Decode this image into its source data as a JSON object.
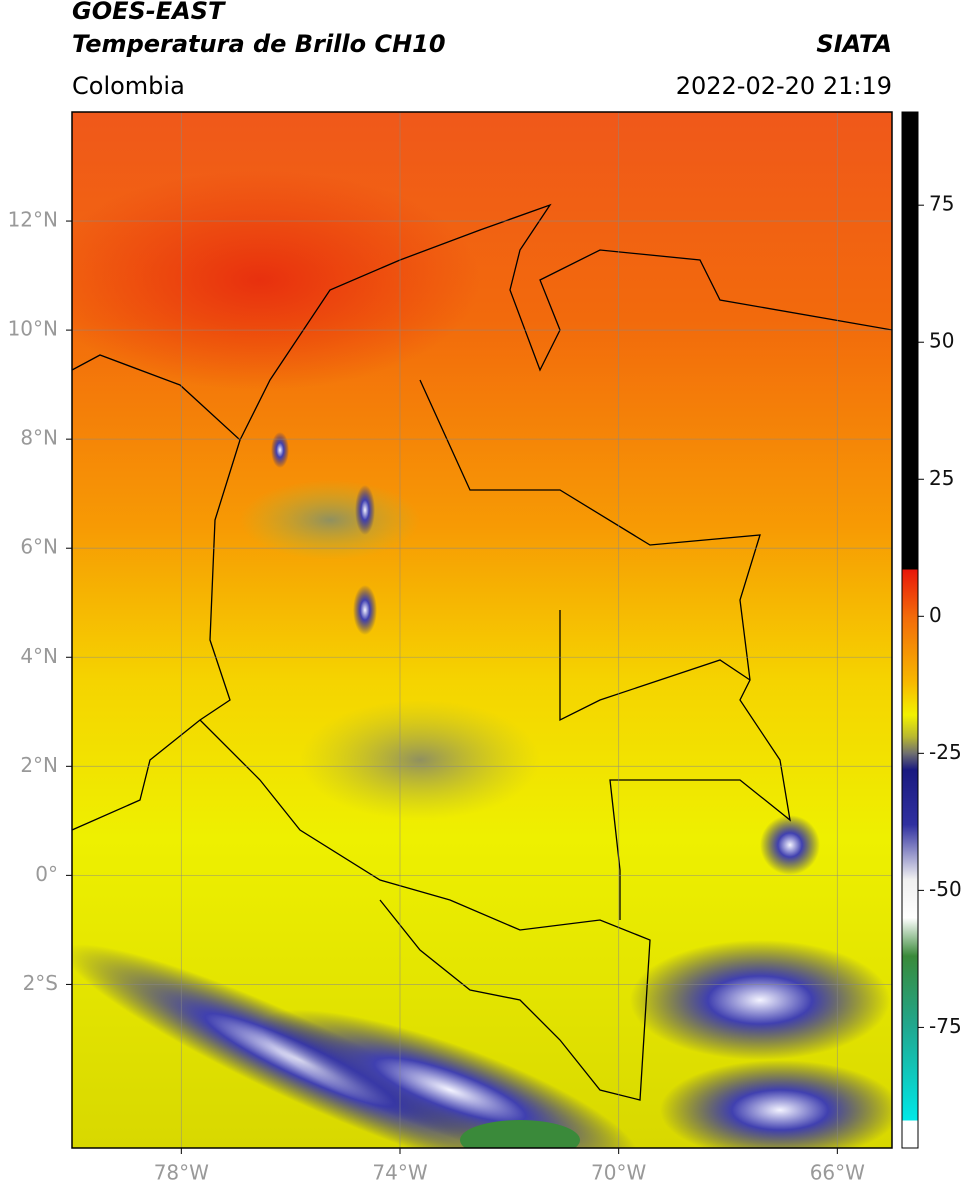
{
  "header": {
    "title": "GOES-EAST",
    "subtitle": "Temperatura de Brillo CH10",
    "region": "Colombia",
    "source": "SIATA",
    "timestamp": "2022-02-20 21:19"
  },
  "map": {
    "lon_range": [
      -80,
      -65
    ],
    "lat_range": [
      -5,
      14
    ],
    "lat_ticks": [
      {
        "value": 12,
        "label": "12°N"
      },
      {
        "value": 10,
        "label": "10°N"
      },
      {
        "value": 8,
        "label": "8°N"
      },
      {
        "value": 6,
        "label": "6°N"
      },
      {
        "value": 4,
        "label": "4°N"
      },
      {
        "value": 2,
        "label": "2°N"
      },
      {
        "value": 0,
        "label": "0°"
      },
      {
        "value": -2,
        "label": "2°S"
      }
    ],
    "lon_ticks": [
      {
        "value": -78,
        "label": "78°W"
      },
      {
        "value": -74,
        "label": "74°W"
      },
      {
        "value": -70,
        "label": "70°W"
      },
      {
        "value": -66,
        "label": "66°W"
      }
    ]
  },
  "colorbar": {
    "range": [
      -97,
      92
    ],
    "ticks": [
      75,
      50,
      25,
      0,
      -25,
      -50,
      -75
    ],
    "colormap": [
      {
        "value": 92,
        "color": "#000000"
      },
      {
        "value": 8.5,
        "color": "#000000"
      },
      {
        "value": 8.5,
        "color": "#e8170a"
      },
      {
        "value": 0,
        "color": "#f36a0a"
      },
      {
        "value": -12,
        "color": "#f7b800"
      },
      {
        "value": -18,
        "color": "#f2f200"
      },
      {
        "value": -22,
        "color": "#b8b830"
      },
      {
        "value": -25,
        "color": "#707070"
      },
      {
        "value": -28,
        "color": "#1a1a80"
      },
      {
        "value": -38,
        "color": "#3030a0"
      },
      {
        "value": -48,
        "color": "#f0f0f0"
      },
      {
        "value": -55,
        "color": "#ffffff"
      },
      {
        "value": -62,
        "color": "#3a8a3a"
      },
      {
        "value": -75,
        "color": "#20a890"
      },
      {
        "value": -92,
        "color": "#00e8e8"
      },
      {
        "value": -92,
        "color": "#ffffff"
      },
      {
        "value": -97,
        "color": "#ffffff"
      }
    ]
  }
}
